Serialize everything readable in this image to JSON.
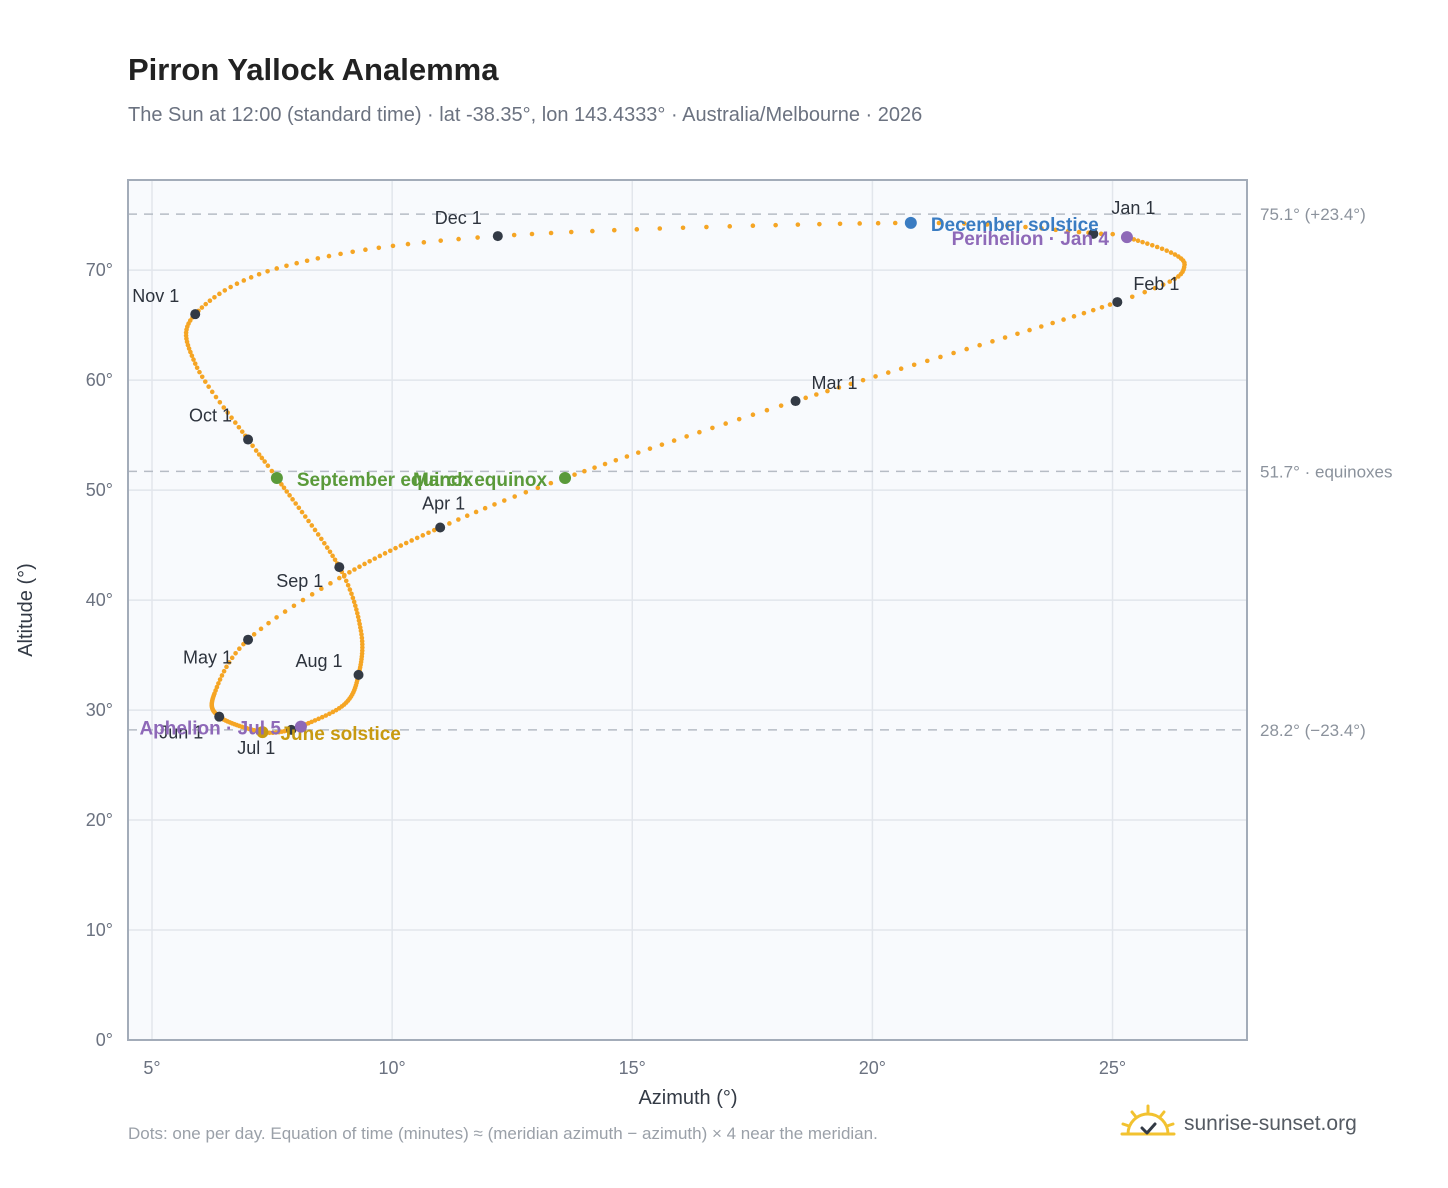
{
  "title": "Pirron Yallock Analemma",
  "subtitle": "The Sun at 12:00 (standard time) · lat -38.35°, lon 143.4333° · Australia/Melbourne · 2026",
  "footnote": "Dots: one per day. Equation of time (minutes) ≈ (meridian azimuth − azimuth) × 4 near the meridian.",
  "brand": {
    "name": "sunrise-sunset.org",
    "icon": "sun-check-icon"
  },
  "colors": {
    "curve": "#f5a524",
    "month_marker": "#333a45",
    "equinox": "#5a9a3a",
    "december_solstice": "#3a7cc2",
    "june_solstice": "#c89a10",
    "apsis": "#8e69b8",
    "plot_bg": "#f8fafd",
    "frame": "#a3acb9",
    "grid": "#e2e6ec",
    "reference_line": "#b6bcc5"
  },
  "chart_data": {
    "type": "scatter",
    "xlabel": "Azimuth (°)",
    "ylabel": "Altitude (°)",
    "xlim": [
      4.5,
      27.8
    ],
    "ylim": [
      0,
      78.2
    ],
    "xticks": [
      5,
      10,
      15,
      20,
      25
    ],
    "xtick_labels": [
      "5°",
      "10°",
      "15°",
      "20°",
      "25°"
    ],
    "yticks": [
      0,
      10,
      20,
      30,
      40,
      50,
      60,
      70
    ],
    "ytick_labels": [
      "0°",
      "10°",
      "20°",
      "30°",
      "40°",
      "50°",
      "60°",
      "70°"
    ],
    "grid": true,
    "reference_lines": [
      {
        "y": 75.1,
        "label": "75.1° (+23.4°)"
      },
      {
        "y": 51.7,
        "label": "51.7° · equinoxes"
      },
      {
        "y": 28.2,
        "label": "28.2° (−23.4°)"
      }
    ],
    "anchors": [
      {
        "doy": 1,
        "az": 24.6,
        "alt": 73.3
      },
      {
        "doy": 4,
        "az": 25.3,
        "alt": 73.0
      },
      {
        "doy": 20,
        "az": 26.5,
        "alt": 70.5
      },
      {
        "doy": 32,
        "az": 25.1,
        "alt": 67.1
      },
      {
        "doy": 60,
        "az": 18.4,
        "alt": 58.1
      },
      {
        "doy": 79,
        "az": 13.6,
        "alt": 51.1
      },
      {
        "doy": 91,
        "az": 11.0,
        "alt": 46.6
      },
      {
        "doy": 110,
        "az": 8.9,
        "alt": 42.0
      },
      {
        "doy": 121,
        "az": 7.0,
        "alt": 36.4
      },
      {
        "doy": 134,
        "az": 6.3,
        "alt": 31.5
      },
      {
        "doy": 152,
        "az": 6.4,
        "alt": 29.4
      },
      {
        "doy": 172,
        "az": 7.3,
        "alt": 28.0
      },
      {
        "doy": 182,
        "az": 7.9,
        "alt": 28.2
      },
      {
        "doy": 186,
        "az": 8.1,
        "alt": 28.5
      },
      {
        "doy": 200,
        "az": 9.0,
        "alt": 30.5
      },
      {
        "doy": 213,
        "az": 9.3,
        "alt": 33.2
      },
      {
        "doy": 228,
        "az": 9.35,
        "alt": 37.2
      },
      {
        "doy": 244,
        "az": 8.9,
        "alt": 43.0
      },
      {
        "doy": 266,
        "az": 7.6,
        "alt": 51.1
      },
      {
        "doy": 274,
        "az": 7.0,
        "alt": 54.6
      },
      {
        "doy": 290,
        "az": 5.9,
        "alt": 61.5
      },
      {
        "doy": 305,
        "az": 5.9,
        "alt": 66.0
      },
      {
        "doy": 320,
        "az": 7.8,
        "alt": 70.4
      },
      {
        "doy": 335,
        "az": 12.2,
        "alt": 73.1
      },
      {
        "doy": 355,
        "az": 20.8,
        "alt": 74.3
      },
      {
        "doy": 365,
        "az": 24.5,
        "alt": 73.4
      }
    ],
    "month_markers": [
      {
        "label": "Jan 1",
        "az": 24.6,
        "alt": 73.3
      },
      {
        "label": "Feb 1",
        "az": 25.1,
        "alt": 67.1
      },
      {
        "label": "Mar 1",
        "az": 18.4,
        "alt": 58.1
      },
      {
        "label": "Apr 1",
        "az": 11.0,
        "alt": 46.6
      },
      {
        "label": "May 1",
        "az": 7.0,
        "alt": 36.4
      },
      {
        "label": "Jun 1",
        "az": 6.4,
        "alt": 29.4
      },
      {
        "label": "Jul 1",
        "az": 7.9,
        "alt": 28.2
      },
      {
        "label": "Aug 1",
        "az": 9.3,
        "alt": 33.2
      },
      {
        "label": "Sep 1",
        "az": 8.9,
        "alt": 43.0
      },
      {
        "label": "Oct 1",
        "az": 7.0,
        "alt": 54.6
      },
      {
        "label": "Nov 1",
        "az": 5.9,
        "alt": 66.0
      },
      {
        "label": "Dec 1",
        "az": 12.2,
        "alt": 73.1
      }
    ],
    "events": [
      {
        "label": "December solstice",
        "az": 20.8,
        "alt": 74.3,
        "kind": "december_solstice"
      },
      {
        "label": "Perihelion · Jan 4",
        "az": 25.3,
        "alt": 73.0,
        "kind": "apsis"
      },
      {
        "label": "March equinox",
        "az": 13.6,
        "alt": 51.1,
        "kind": "equinox"
      },
      {
        "label": "September equinox",
        "az": 7.6,
        "alt": 51.1,
        "kind": "equinox"
      },
      {
        "label": "June solstice",
        "az": 7.3,
        "alt": 28.0,
        "kind": "june_solstice"
      },
      {
        "label": "Aphelion · Jul 5",
        "az": 8.1,
        "alt": 28.5,
        "kind": "apsis"
      }
    ]
  }
}
